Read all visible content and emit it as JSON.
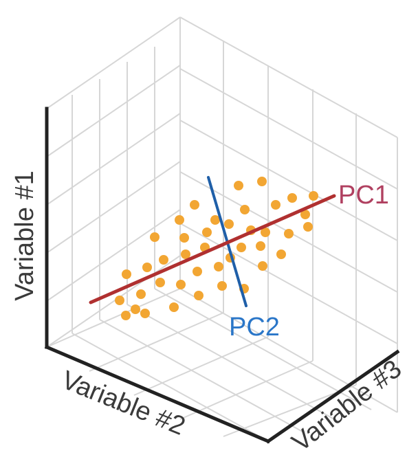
{
  "axes": {
    "vertical_label": "Variable #1",
    "left_label": "Variable #2",
    "right_label": "Variable #3"
  },
  "components": {
    "pc1": {
      "label": "PC1",
      "color": "#b03030",
      "label_color": "#b04060"
    },
    "pc2": {
      "label": "PC2",
      "color": "#1f5fa8",
      "label_color": "#2a76c8"
    }
  },
  "style": {
    "point_color": "#f2a633",
    "grid_color": "#d6d6d6",
    "axis_color": "#222222"
  },
  "chart_data": {
    "type": "scatter",
    "projection": "isometric-3d",
    "grid": true,
    "xlabel": "Variable #2",
    "ylabel": "Variable #1",
    "zlabel": "Variable #3"
  }
}
